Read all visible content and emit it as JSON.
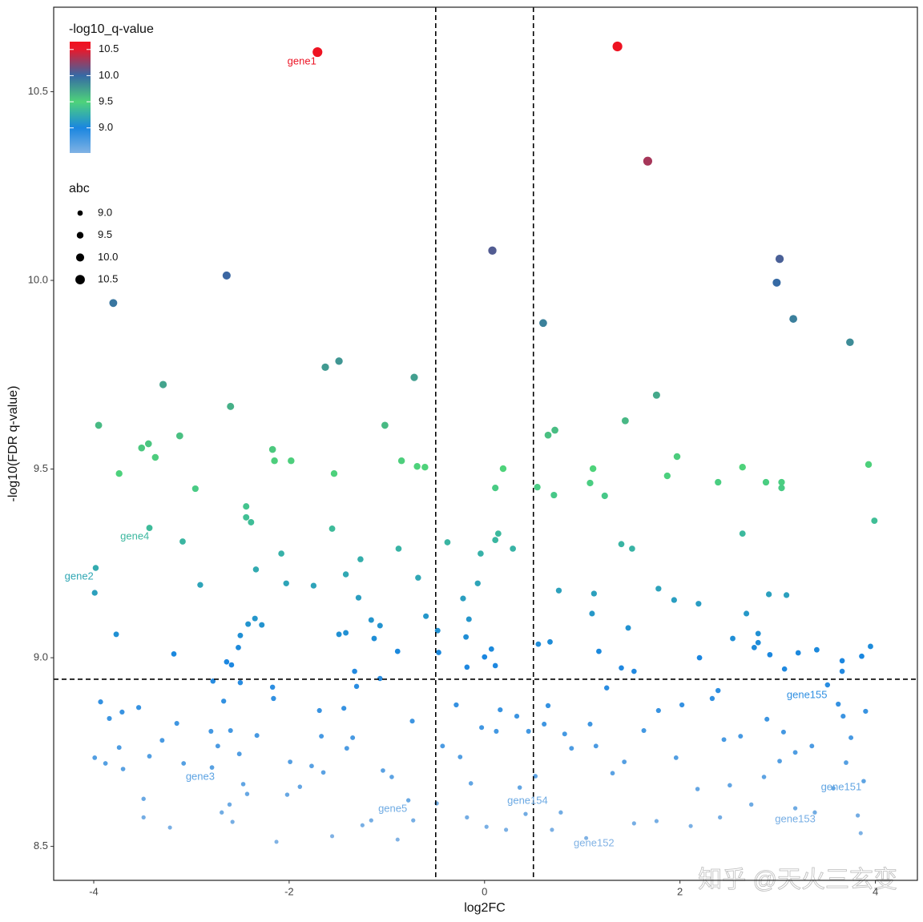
{
  "chart_data": {
    "type": "scatter",
    "x_label": "log2FC",
    "y_label": "-log10(FDR q-value)",
    "xlim": [
      -4.41,
      4.43
    ],
    "ylim": [
      8.41,
      10.724
    ],
    "xticks": [
      -4,
      -2,
      0,
      2,
      4
    ],
    "yticks": [
      {
        "value": 8.5,
        "label": "8.5"
      },
      {
        "value": 9,
        "label": "9.0"
      },
      {
        "value": 9.5,
        "label": "9.5"
      },
      {
        "value": 10,
        "label": "10.0"
      },
      {
        "value": 10.5,
        "label": "10.5"
      }
    ],
    "vlines": [
      -0.5,
      0.5
    ],
    "hline": 8.943,
    "color_legend_title": "-log10_q-value",
    "colorbar_lim": [
      8.52,
      10.65
    ],
    "colorscale": [
      [
        8.52,
        "#80b2e4"
      ],
      [
        9.0,
        "#1a86e0"
      ],
      [
        9.5,
        "#4ed37a"
      ],
      [
        10.0,
        "#3669a5"
      ],
      [
        10.5,
        "#e8192c"
      ],
      [
        10.65,
        "#f0101e"
      ]
    ],
    "colorbar_ticks": [
      {
        "value": 9,
        "label": "9.0"
      },
      {
        "value": 9.5,
        "label": "9.5"
      },
      {
        "value": 10,
        "label": "10.0"
      },
      {
        "value": 10.5,
        "label": "10.5"
      }
    ],
    "size_legend_title": "abc",
    "size_legend": [
      {
        "value": 9,
        "label": "9.0"
      },
      {
        "value": 9.5,
        "label": "9.5"
      },
      {
        "value": 10,
        "label": "10.0"
      },
      {
        "value": 10.5,
        "label": "10.5"
      }
    ],
    "x": [
      -1.71,
      1.36,
      1.67,
      0.08,
      -2.64,
      -3.8,
      3.02,
      2.99,
      3.16,
      0.6,
      3.74,
      -1.49,
      -1.63,
      -0.72,
      -3.29,
      1.76,
      -2.6,
      -3.95,
      -1.02,
      1.44,
      0.72,
      0.65,
      -3.12,
      -3.44,
      -3.51,
      -2.17,
      -3.37,
      -2.15,
      -1.98,
      -0.85,
      1.97,
      -0.69,
      -0.61,
      0.19,
      1.11,
      2.64,
      3.93,
      -3.74,
      -1.54,
      1.87,
      2.39,
      2.88,
      3.04,
      3.04,
      0.54,
      0.11,
      -2.96,
      1.08,
      1.23,
      0.71,
      -2.44,
      -2.44,
      -2.39,
      -3.43,
      -1.56,
      0.14,
      2.64,
      3.99,
      0.11,
      -3.09,
      -0.38,
      1.4,
      1.51,
      0.29,
      -0.88,
      -0.04,
      -2.08,
      -1.27,
      -3.98,
      -2.34,
      -1.42,
      -0.68,
      -2.03,
      -0.07,
      -2.91,
      -1.75,
      1.78,
      0.76,
      -3.99,
      1.12,
      2.91,
      3.09,
      -1.29,
      -0.22,
      1.94,
      2.19,
      2.68,
      1.1,
      -0.6,
      -2.35,
      -0.16,
      -1.16,
      -2.28,
      -2.42,
      -1.07,
      1.47,
      -0.48,
      -3.77,
      -1.42,
      -1.49,
      2.8,
      -2.5,
      -0.19,
      -1.13,
      2.54,
      2.8,
      0.67,
      0.55,
      3.95,
      2.76,
      -2.52,
      0.07,
      3.4,
      -0.89,
      1.17,
      -0.47,
      -3.18,
      3.21,
      2.92,
      3.86,
      0.0,
      2.2,
      -2.64,
      3.66,
      -2.59,
      0.11,
      -0.18,
      1.4,
      3.07,
      1.53,
      -1.33,
      3.66,
      -1.07,
      -2.78,
      -2.5,
      -1.31,
      -2.17,
      1.25,
      -3.93,
      -3.99,
      -3.88,
      -3.84,
      -3.74,
      -3.71,
      -3.7,
      -3.54,
      -3.49,
      -3.49,
      -3.43,
      -3.3,
      -3.22,
      -3.15,
      -3.08,
      -2.8,
      -2.79,
      -2.73,
      -2.69,
      -2.67,
      -2.61,
      -2.6,
      -2.58,
      -2.51,
      -2.47,
      -2.43,
      -2.33,
      -2.16,
      -2.13,
      -2.02,
      -1.99,
      -1.89,
      -1.77,
      -1.69,
      -1.67,
      -1.65,
      -1.56,
      -1.44,
      -1.41,
      -1.35,
      -1.25,
      -1.16,
      -1.04,
      -0.95,
      -0.89,
      -0.78,
      -0.74,
      -0.73,
      -0.49,
      -0.43,
      -0.29,
      -0.25,
      -0.18,
      -0.14,
      -0.03,
      0.02,
      0.12,
      0.16,
      0.22,
      0.33,
      0.36,
      0.42,
      0.45,
      0.52,
      0.61,
      0.65,
      0.69,
      0.78,
      0.82,
      0.89,
      1.04,
      1.08,
      1.14,
      1.31,
      1.43,
      1.53,
      1.63,
      1.76,
      1.78,
      1.96,
      2.02,
      2.11,
      2.18,
      2.33,
      2.39,
      2.41,
      2.45,
      2.51,
      2.62,
      2.73,
      2.86,
      2.89,
      3.02,
      3.06,
      3.18,
      3.18,
      3.35,
      3.38,
      3.51,
      3.57,
      3.62,
      3.67,
      3.7,
      3.75,
      3.82,
      3.88,
      3.9,
      3.85
    ],
    "y": [
      10.605,
      10.62,
      10.316,
      10.079,
      10.013,
      9.94,
      10.057,
      9.994,
      9.898,
      9.887,
      9.836,
      9.786,
      9.77,
      9.743,
      9.724,
      9.696,
      9.666,
      9.616,
      9.616,
      9.628,
      9.603,
      9.59,
      9.588,
      9.567,
      9.556,
      9.552,
      9.531,
      9.522,
      9.522,
      9.522,
      9.533,
      9.507,
      9.505,
      9.501,
      9.501,
      9.505,
      9.512,
      9.488,
      9.488,
      9.482,
      9.465,
      9.465,
      9.465,
      9.45,
      9.452,
      9.45,
      9.448,
      9.463,
      9.429,
      9.431,
      9.401,
      9.372,
      9.359,
      9.344,
      9.342,
      9.329,
      9.329,
      9.363,
      9.312,
      9.308,
      9.306,
      9.301,
      9.289,
      9.289,
      9.289,
      9.276,
      9.276,
      9.261,
      9.238,
      9.234,
      9.221,
      9.212,
      9.197,
      9.197,
      9.193,
      9.191,
      9.183,
      9.178,
      9.172,
      9.17,
      9.168,
      9.166,
      9.159,
      9.157,
      9.153,
      9.143,
      9.117,
      9.117,
      9.11,
      9.104,
      9.102,
      9.1,
      9.087,
      9.089,
      9.085,
      9.079,
      9.072,
      9.062,
      9.066,
      9.062,
      9.064,
      9.059,
      9.055,
      9.051,
      9.051,
      9.04,
      9.042,
      9.036,
      9.03,
      9.027,
      9.027,
      9.023,
      9.021,
      9.017,
      9.017,
      9.014,
      9.01,
      9.013,
      9.008,
      9.004,
      9.002,
      9.0,
      8.989,
      8.992,
      8.981,
      8.979,
      8.975,
      8.973,
      8.97,
      8.964,
      8.964,
      8.964,
      8.945,
      8.938,
      8.934,
      8.924,
      8.922,
      8.92,
      8.883,
      8.735,
      8.72,
      8.839,
      8.762,
      8.856,
      8.705,
      8.868,
      8.626,
      8.577,
      8.739,
      8.781,
      8.55,
      8.826,
      8.72,
      8.805,
      8.709,
      8.766,
      8.59,
      8.885,
      8.611,
      8.807,
      8.565,
      8.745,
      8.665,
      8.639,
      8.794,
      8.892,
      8.512,
      8.637,
      8.724,
      8.658,
      8.713,
      8.86,
      8.792,
      8.696,
      8.527,
      8.866,
      8.76,
      8.788,
      8.556,
      8.569,
      8.701,
      8.684,
      8.518,
      8.622,
      8.832,
      8.569,
      8.614,
      8.766,
      8.875,
      8.737,
      8.577,
      8.667,
      8.815,
      8.552,
      8.805,
      8.862,
      8.544,
      8.845,
      8.656,
      8.586,
      8.805,
      8.686,
      8.824,
      8.873,
      8.544,
      8.59,
      8.798,
      8.76,
      8.522,
      8.824,
      8.766,
      8.694,
      8.724,
      8.561,
      8.807,
      8.567,
      8.86,
      8.735,
      8.875,
      8.554,
      8.652,
      8.892,
      8.913,
      8.577,
      8.783,
      8.662,
      8.792,
      8.611,
      8.684,
      8.837,
      8.726,
      8.803,
      8.749,
      8.601,
      8.766,
      8.59,
      8.928,
      8.654,
      8.877,
      8.845,
      8.722,
      8.788,
      8.582,
      8.673,
      8.858,
      8.535
    ],
    "labels": [
      {
        "text": "gene1",
        "x": -1.87,
        "y": 10.58
      },
      {
        "text": "gene2",
        "x": -4.15,
        "y": 9.214
      },
      {
        "text": "gene4",
        "x": -3.58,
        "y": 9.321
      },
      {
        "text": "gene3",
        "x": -2.91,
        "y": 8.684
      },
      {
        "text": "gene5",
        "x": -0.94,
        "y": 8.599
      },
      {
        "text": "gene154",
        "x": 0.44,
        "y": 8.62
      },
      {
        "text": "gene152",
        "x": 1.12,
        "y": 8.507
      },
      {
        "text": "gene153",
        "x": 3.18,
        "y": 8.571
      },
      {
        "text": "gene151",
        "x": 3.65,
        "y": 8.656
      },
      {
        "text": "gene155",
        "x": 3.3,
        "y": 8.9
      }
    ],
    "watermark": "知乎 @天火三玄变"
  }
}
